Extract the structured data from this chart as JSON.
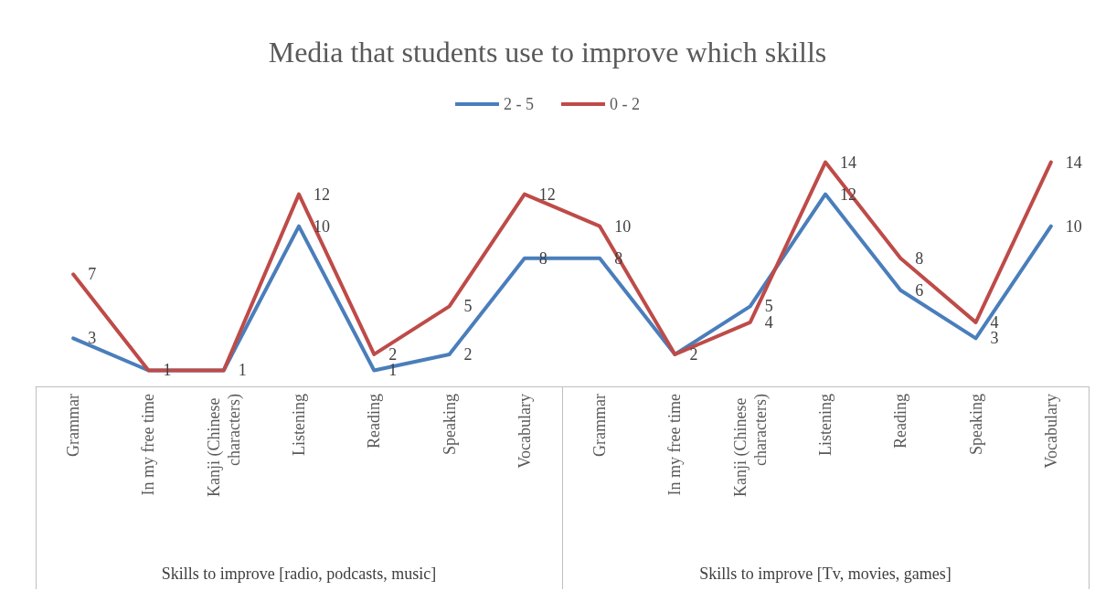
{
  "chart_data": {
    "type": "line",
    "title": "Media that students use to improve which skills",
    "categories": [
      "Grammar",
      "In my free time",
      "Kanji (Chinese characters)",
      "Listening",
      "Reading",
      "Speaking",
      "Vocabulary",
      "Grammar",
      "In my free time",
      "Kanji (Chinese characters)",
      "Listening",
      "Reading",
      "Speaking",
      "Vocabulary"
    ],
    "series": [
      {
        "name": "2 - 5",
        "color": "#4a7ebb",
        "values": [
          3,
          1,
          1,
          10,
          1,
          2,
          8,
          8,
          2,
          5,
          12,
          6,
          3,
          10
        ]
      },
      {
        "name": "0 - 2",
        "color": "#be4b48",
        "values": [
          7,
          1,
          1,
          12,
          2,
          5,
          12,
          10,
          2,
          4,
          14,
          8,
          4,
          14
        ],
        "value_labels": [
          "7",
          null,
          null,
          "12",
          "2",
          "5",
          "12",
          "10",
          null,
          "4",
          "14",
          "8",
          "4",
          "14"
        ]
      }
    ],
    "annotations": [
      "Skills to improve [radio, podcasts, music]",
      "Skills to improve [Tv, movies, games]"
    ],
    "data_labels": true,
    "legend": "top",
    "grid": false,
    "marker": "none",
    "line_style": "solid"
  }
}
